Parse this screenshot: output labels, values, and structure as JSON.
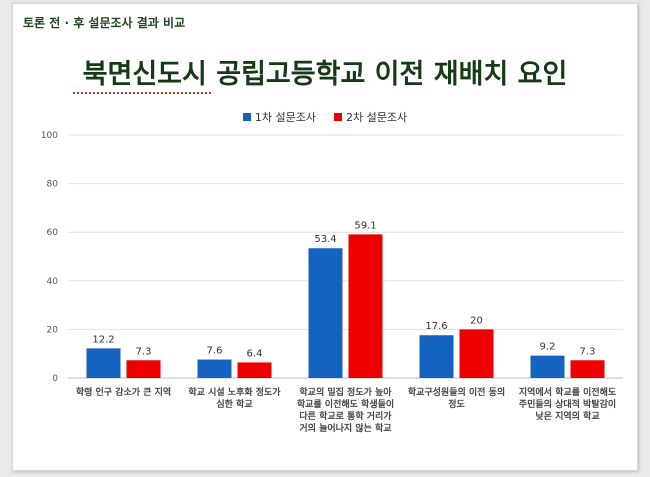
{
  "header": {
    "label": "토론 전 · 후 설문조사 결과 비교"
  },
  "colors": {
    "series1": "#1563c0",
    "series2": "#ee0000"
  },
  "chart_data": {
    "type": "bar",
    "title": "북면신도시 공립고등학교 이전 재배치 요인",
    "categories": [
      [
        "학령 인구 감소가 큰 지역"
      ],
      [
        "학교 시설 노후화 정도가",
        "심한 학교"
      ],
      [
        "학교의 밀집 정도가 높아",
        "학교를 이전해도 학생들이",
        "다른 학교로 통학 거리가",
        "거의 늘어나지 않는 학교"
      ],
      [
        "학교구성원들의 이전 동의",
        "정도"
      ],
      [
        "지역에서 학교를 이전해도",
        "주민들의 상대적 박탈감이",
        "낮은 지역의 학교"
      ]
    ],
    "series": [
      {
        "name": "1차 설문조사",
        "values": [
          12.2,
          7.6,
          53.4,
          17.6,
          9.2
        ]
      },
      {
        "name": "2차 설문조사",
        "values": [
          7.3,
          6.4,
          59.1,
          20,
          7.3
        ]
      }
    ],
    "ylim": [
      0,
      100
    ],
    "yticks": [
      0,
      20,
      40,
      60,
      80,
      100
    ],
    "grid": true,
    "legend": "top-center"
  }
}
